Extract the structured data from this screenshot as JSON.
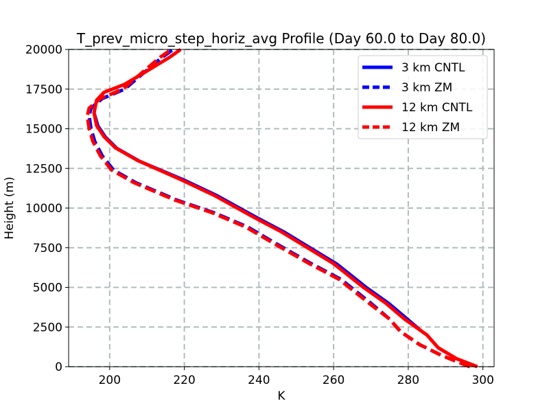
{
  "chart_data": {
    "type": "line",
    "title": "T_prev_micro_step_horiz_avg Profile (Day 60.0 to Day 80.0)",
    "xlabel": "K",
    "ylabel": "Height (m)",
    "xlim": [
      189,
      303
    ],
    "ylim": [
      0,
      20000
    ],
    "x_ticks": [
      200,
      220,
      240,
      260,
      280,
      300
    ],
    "y_ticks": [
      0,
      2500,
      5000,
      7500,
      10000,
      12500,
      15000,
      17500,
      20000
    ],
    "grid": true,
    "legend_position": "top-right",
    "series": [
      {
        "name": "3 km CNTL",
        "color": "#0000ff",
        "linestyle": "solid",
        "points": [
          [
            298.5,
            0
          ],
          [
            293,
            500
          ],
          [
            288,
            1200
          ],
          [
            285,
            2000
          ],
          [
            280,
            3000
          ],
          [
            275,
            4000
          ],
          [
            269,
            5000
          ],
          [
            261,
            6500
          ],
          [
            254,
            7500
          ],
          [
            247,
            8500
          ],
          [
            239,
            9500
          ],
          [
            229,
            10800
          ],
          [
            220,
            11800
          ],
          [
            208,
            13000
          ],
          [
            202,
            13800
          ],
          [
            199,
            14500
          ],
          [
            197,
            15200
          ],
          [
            196,
            16000
          ],
          [
            196.5,
            16800
          ],
          [
            198.5,
            17300
          ],
          [
            204,
            17800
          ],
          [
            209,
            18500
          ],
          [
            216,
            19500
          ],
          [
            219,
            20000
          ]
        ]
      },
      {
        "name": "3 km ZM",
        "color": "#0000ff",
        "linestyle": "dashed",
        "points": [
          [
            296.5,
            0
          ],
          [
            289,
            700
          ],
          [
            283,
            1400
          ],
          [
            278,
            2200
          ],
          [
            275,
            3000
          ],
          [
            270,
            4000
          ],
          [
            262,
            5500
          ],
          [
            254,
            6500
          ],
          [
            245,
            7700
          ],
          [
            237,
            8800
          ],
          [
            228,
            9700
          ],
          [
            218,
            10500
          ],
          [
            207,
            11600
          ],
          [
            201,
            12400
          ],
          [
            198,
            13300
          ],
          [
            196,
            14200
          ],
          [
            195,
            15000
          ],
          [
            194.5,
            15800
          ],
          [
            195,
            16300
          ],
          [
            198,
            16900
          ],
          [
            204,
            17500
          ],
          [
            209,
            18500
          ],
          [
            214,
            19500
          ],
          [
            217,
            20000
          ]
        ]
      },
      {
        "name": "12 km CNTL",
        "color": "#ff0000",
        "linestyle": "solid",
        "points": [
          [
            298.5,
            0
          ],
          [
            293,
            500
          ],
          [
            288,
            1200
          ],
          [
            285,
            2000
          ],
          [
            279,
            3000
          ],
          [
            274,
            4000
          ],
          [
            268,
            5000
          ],
          [
            260,
            6500
          ],
          [
            253,
            7500
          ],
          [
            246,
            8500
          ],
          [
            238,
            9500
          ],
          [
            228,
            10800
          ],
          [
            219,
            11800
          ],
          [
            207.5,
            13000
          ],
          [
            201.5,
            13800
          ],
          [
            198.5,
            14500
          ],
          [
            196.5,
            15200
          ],
          [
            195.8,
            16000
          ],
          [
            196.5,
            16800
          ],
          [
            198.5,
            17300
          ],
          [
            204,
            17800
          ],
          [
            209,
            18500
          ],
          [
            216,
            19500
          ],
          [
            219,
            20000
          ]
        ]
      },
      {
        "name": "12 km ZM",
        "color": "#ff0000",
        "linestyle": "dashed",
        "points": [
          [
            296.5,
            0
          ],
          [
            289,
            700
          ],
          [
            283,
            1400
          ],
          [
            278,
            2200
          ],
          [
            275,
            3000
          ],
          [
            269.5,
            4000
          ],
          [
            261.5,
            5500
          ],
          [
            253.5,
            6500
          ],
          [
            244.5,
            7700
          ],
          [
            236.5,
            8800
          ],
          [
            227.5,
            9700
          ],
          [
            217.5,
            10500
          ],
          [
            206.5,
            11600
          ],
          [
            200.5,
            12400
          ],
          [
            197.5,
            13300
          ],
          [
            195.5,
            14200
          ],
          [
            194.5,
            15000
          ],
          [
            194,
            15800
          ],
          [
            194.5,
            16300
          ],
          [
            197.5,
            16900
          ],
          [
            203.5,
            17500
          ],
          [
            208.5,
            18500
          ],
          [
            213.5,
            19500
          ],
          [
            216.5,
            20000
          ]
        ]
      }
    ]
  }
}
